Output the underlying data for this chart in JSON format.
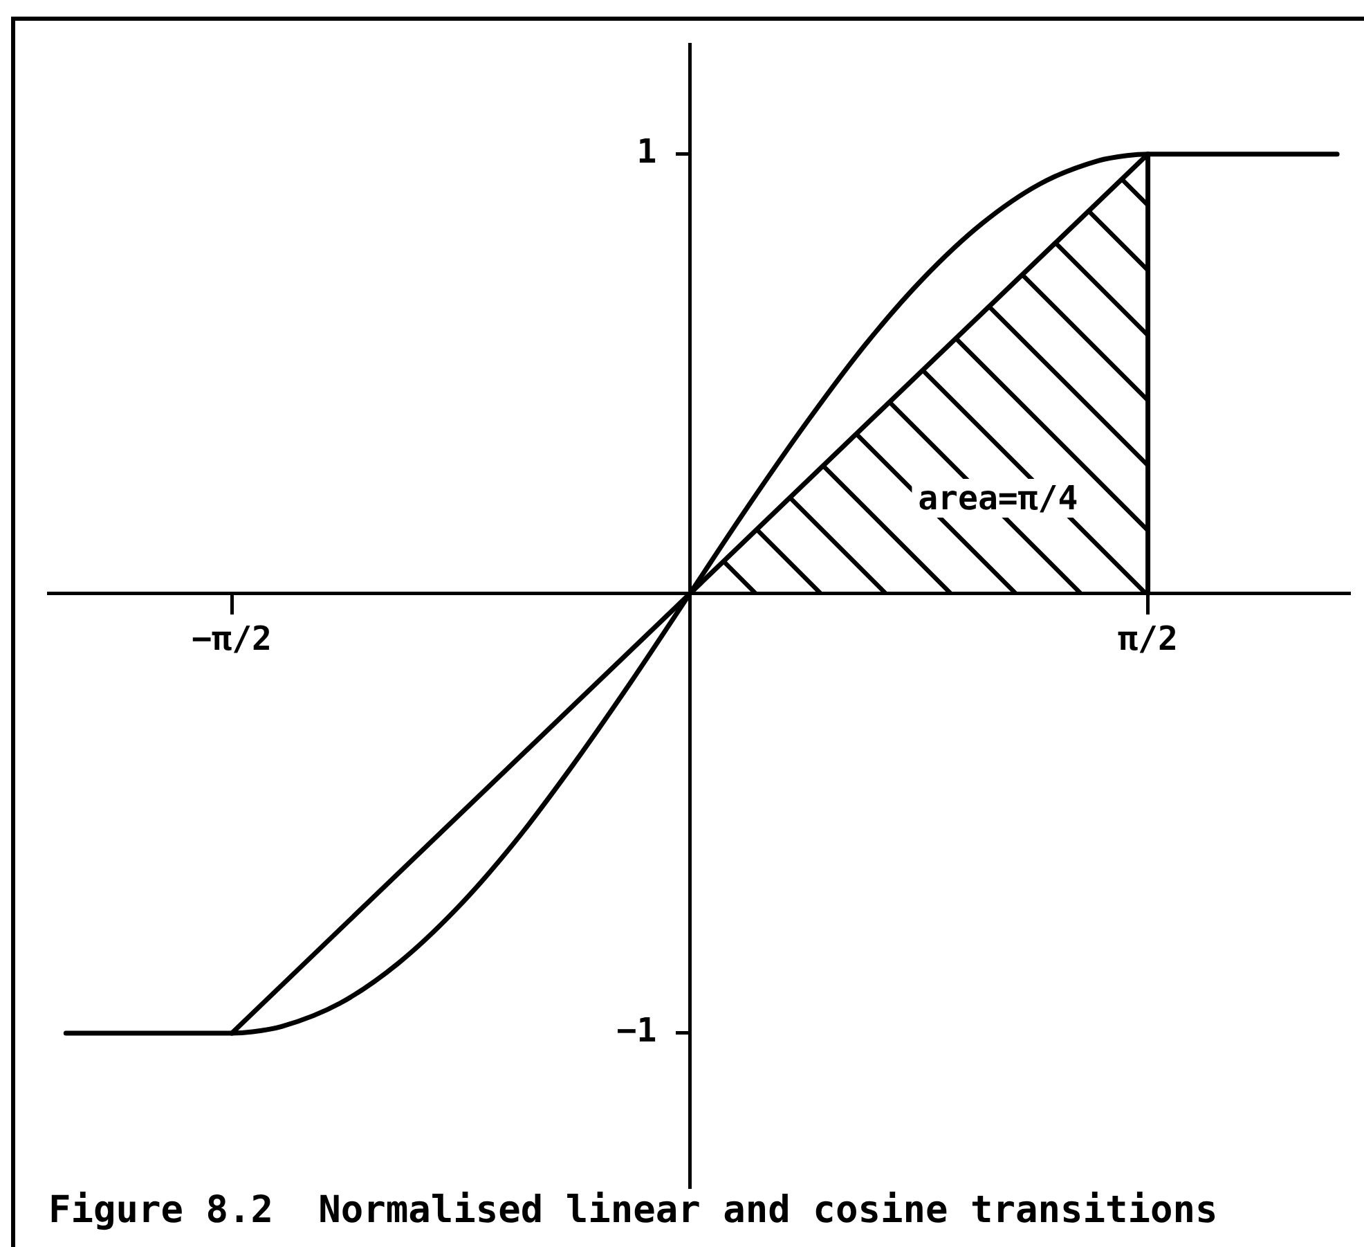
{
  "chart_data": {
    "type": "line",
    "title": "Figure 8.2  Normalised linear and cosine transitions",
    "series": [
      {
        "type": "line",
        "color": "#000000",
        "x": [
          -2.14,
          -1.571,
          -1.5,
          -1.4,
          -1.2,
          -1.0,
          -0.8,
          -0.6,
          -0.4,
          -0.2,
          0,
          0.2,
          0.4,
          0.6,
          0.8,
          1.0,
          1.2,
          1.4,
          1.5,
          1.571,
          2.22
        ],
        "values": [
          -1,
          -1,
          -0.997,
          -0.985,
          -0.932,
          -0.841,
          -0.717,
          -0.565,
          -0.389,
          -0.199,
          0,
          0.199,
          0.389,
          0.565,
          0.717,
          0.841,
          0.932,
          0.985,
          0.997,
          1,
          1
        ]
      },
      {
        "type": "line",
        "color": "#000000",
        "x": [
          -1.571,
          1.571
        ],
        "values": [
          -1,
          1
        ]
      },
      {
        "type": "line",
        "color": "#000000",
        "x": [
          1.571,
          1.571
        ],
        "values": [
          0,
          1
        ]
      }
    ],
    "xlim": [
      -2.2,
      2.26
    ],
    "ylim": [
      -1.35,
      1.25
    ],
    "xticks": [
      {
        "value": -1.571,
        "label": "−π/2"
      },
      {
        "value": 1.571,
        "label": "π/2"
      }
    ],
    "yticks": [
      {
        "value": -1,
        "label": "−1"
      },
      1
    ],
    "annotations": [
      "area=π/4"
    ],
    "marker": "none",
    "line_style": "solid"
  }
}
